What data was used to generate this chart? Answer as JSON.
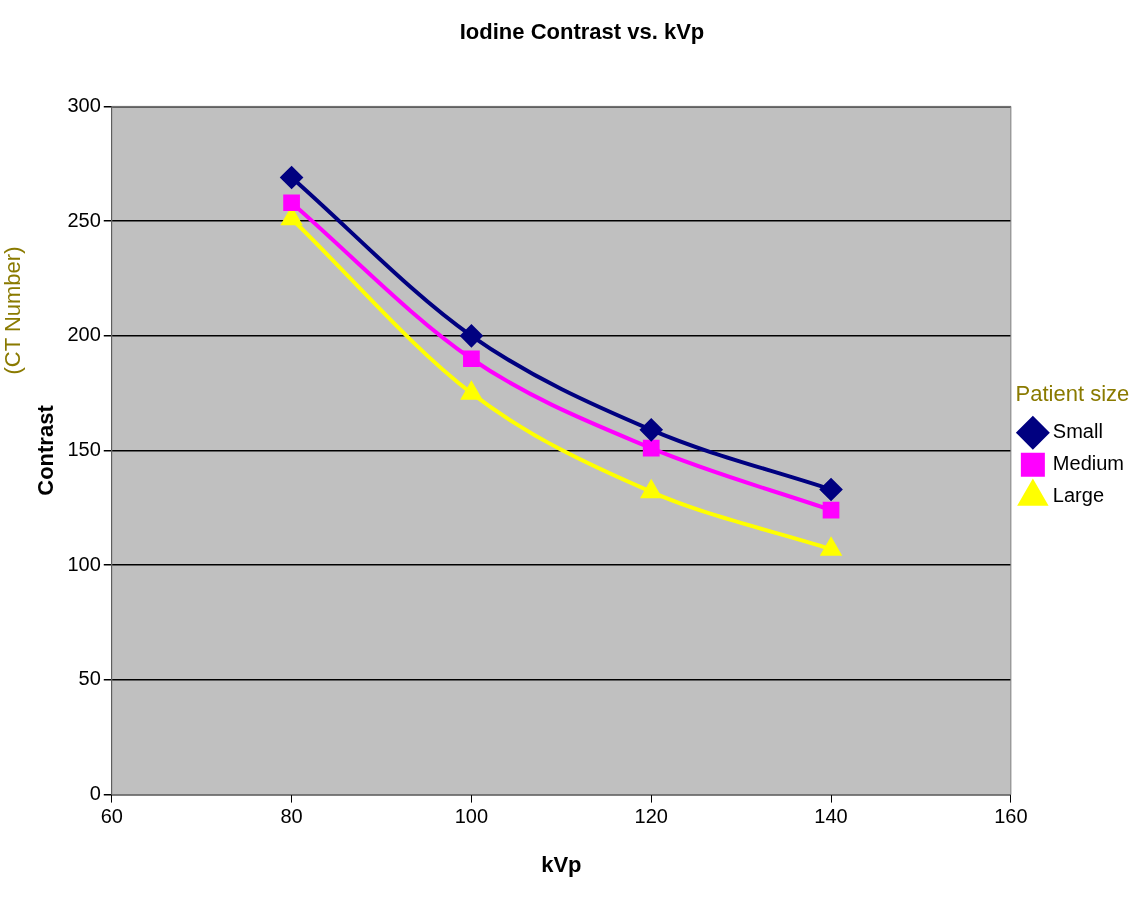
{
  "chart_data": {
    "type": "line",
    "title": "Iodine Contrast vs. kVp",
    "xlabel": "kVp",
    "ylabel": "Contrast",
    "annotations": [
      "(CT Number)"
    ],
    "legend_title": "Patient size",
    "x": [
      80,
      100,
      120,
      140
    ],
    "series": [
      {
        "name": "Small",
        "color": "#000080",
        "marker": "diamond",
        "values": [
          269,
          200,
          159,
          133
        ]
      },
      {
        "name": "Medium",
        "color": "#ff00ff",
        "marker": "square",
        "values": [
          258,
          190,
          151,
          124
        ]
      },
      {
        "name": "Large",
        "color": "#ffff00",
        "marker": "triangle",
        "values": [
          251,
          175,
          132,
          107
        ]
      }
    ],
    "xlim": [
      60,
      160
    ],
    "xticks": [
      60,
      80,
      100,
      120,
      140,
      160
    ],
    "ylim": [
      0,
      300
    ],
    "yticks": [
      0,
      50,
      100,
      150,
      200,
      250,
      300
    ],
    "grid": "y",
    "legend": "right",
    "line_style": "solid"
  }
}
